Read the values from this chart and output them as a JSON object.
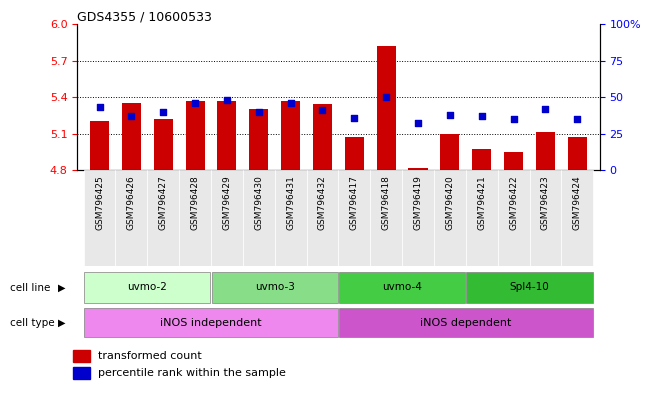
{
  "title": "GDS4355 / 10600533",
  "samples": [
    "GSM796425",
    "GSM796426",
    "GSM796427",
    "GSM796428",
    "GSM796429",
    "GSM796430",
    "GSM796431",
    "GSM796432",
    "GSM796417",
    "GSM796418",
    "GSM796419",
    "GSM796420",
    "GSM796421",
    "GSM796422",
    "GSM796423",
    "GSM796424"
  ],
  "bar_values": [
    5.2,
    5.35,
    5.22,
    5.37,
    5.37,
    5.3,
    5.37,
    5.34,
    5.07,
    5.82,
    4.82,
    5.1,
    4.97,
    4.95,
    5.11,
    5.07
  ],
  "blue_values": [
    43,
    37,
    40,
    46,
    48,
    40,
    46,
    41,
    36,
    50,
    32,
    38,
    37,
    35,
    42,
    35
  ],
  "ylim_left": [
    4.8,
    6.0
  ],
  "ylim_right": [
    0,
    100
  ],
  "yticks_left": [
    4.8,
    5.1,
    5.4,
    5.7,
    6.0
  ],
  "yticks_right": [
    0,
    25,
    50,
    75,
    100
  ],
  "hlines": [
    5.1,
    5.4,
    5.7
  ],
  "bar_color": "#cc0000",
  "blue_color": "#0000cc",
  "bar_bottom": 4.8,
  "cell_lines": [
    {
      "label": "uvmo-2",
      "start": 0,
      "end": 4,
      "color": "#ccffcc"
    },
    {
      "label": "uvmo-3",
      "start": 4,
      "end": 8,
      "color": "#88dd88"
    },
    {
      "label": "uvmo-4",
      "start": 8,
      "end": 12,
      "color": "#44cc44"
    },
    {
      "label": "Spl4-10",
      "start": 12,
      "end": 16,
      "color": "#33bb33"
    }
  ],
  "cell_types": [
    {
      "label": "iNOS independent",
      "start": 0,
      "end": 8,
      "color": "#ee88ee"
    },
    {
      "label": "iNOS dependent",
      "start": 8,
      "end": 16,
      "color": "#cc55cc"
    }
  ],
  "legend_bar_label": "transformed count",
  "legend_blue_label": "percentile rank within the sample",
  "cell_line_label": "cell line",
  "cell_type_label": "cell type",
  "bg_color": "#e8e8e8"
}
